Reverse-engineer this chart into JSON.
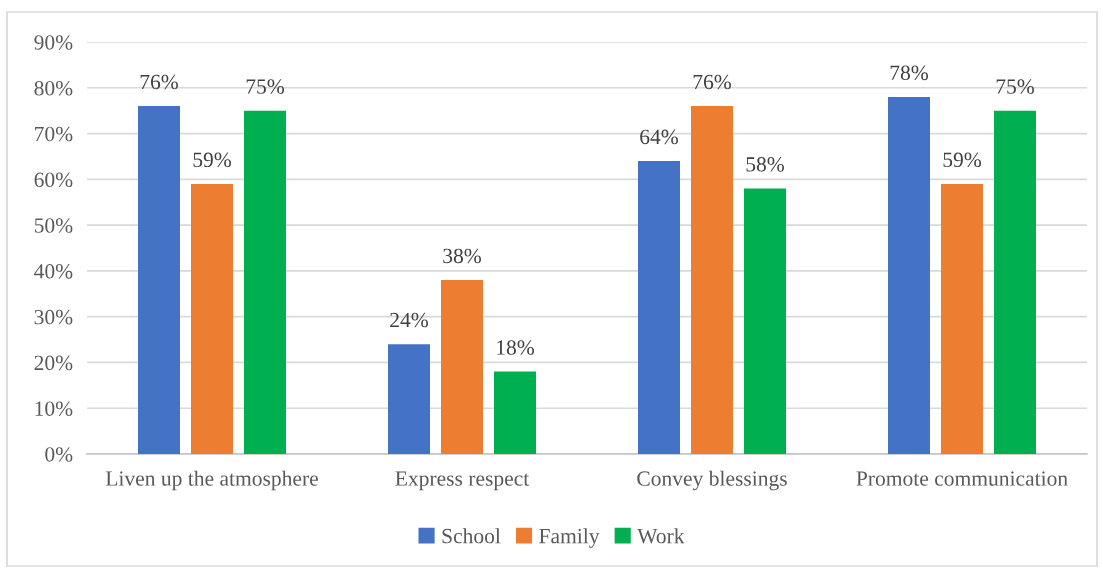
{
  "chart_data": {
    "type": "bar",
    "categories": [
      "Liven up the atmosphere",
      "Express respect",
      "Convey blessings",
      "Promote communication"
    ],
    "series": [
      {
        "name": "School",
        "color": "#4472c4",
        "values": [
          76,
          24,
          64,
          78
        ],
        "value_labels": [
          "76%",
          "24%",
          "64%",
          "78%"
        ]
      },
      {
        "name": "Family",
        "color": "#ed7d31",
        "values": [
          59,
          38,
          76,
          59
        ],
        "value_labels": [
          "59%",
          "38%",
          "76%",
          "59%"
        ]
      },
      {
        "name": "Work",
        "color": "#00b050",
        "values": [
          75,
          18,
          58,
          75
        ],
        "value_labels": [
          "75%",
          "18%",
          "58%",
          "75%"
        ]
      }
    ],
    "ylim": [
      0,
      90
    ],
    "yticks": [
      {
        "value": 0,
        "label": "0%"
      },
      {
        "value": 10,
        "label": "10%"
      },
      {
        "value": 20,
        "label": "20%"
      },
      {
        "value": 30,
        "label": "30%"
      },
      {
        "value": 40,
        "label": "40%"
      },
      {
        "value": 50,
        "label": "50%"
      },
      {
        "value": 60,
        "label": "60%"
      },
      {
        "value": 70,
        "label": "70%"
      },
      {
        "value": 80,
        "label": "80%"
      },
      {
        "value": 90,
        "label": "90%"
      }
    ],
    "grid": "y",
    "legend": "bottom"
  }
}
